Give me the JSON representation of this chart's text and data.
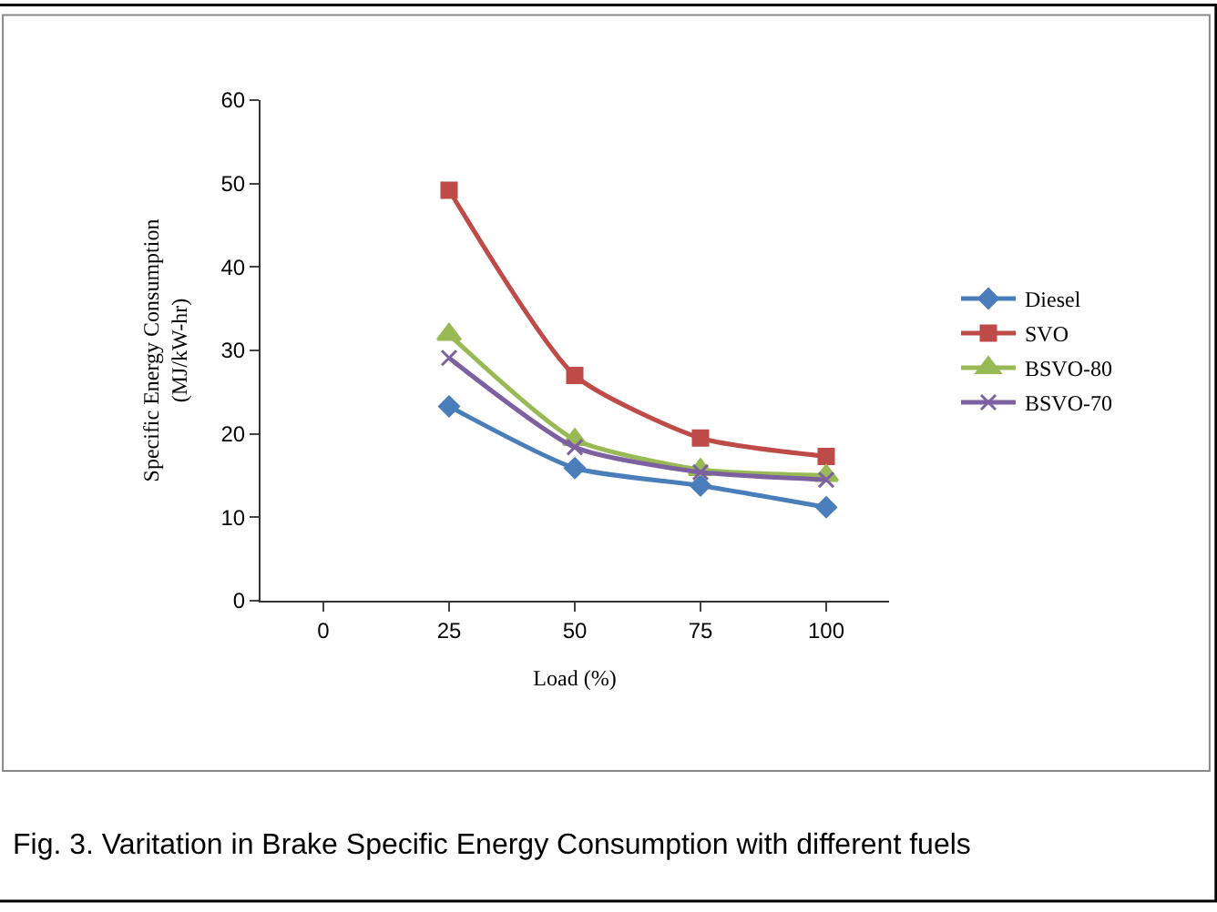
{
  "chart_data": {
    "type": "line",
    "xlabel": "Load (%)",
    "ylabel": "Specific Energy Consumption\n(MJ/kW-hr)",
    "categories": [
      "0",
      "25",
      "50",
      "75",
      "100"
    ],
    "series": [
      {
        "name": "Diesel",
        "color": "#4a7ebb",
        "marker": "diamond",
        "values": [
          null,
          23.3,
          15.9,
          13.8,
          11.2
        ]
      },
      {
        "name": "SVO",
        "color": "#be4b48",
        "marker": "square",
        "values": [
          null,
          49.2,
          27.0,
          19.5,
          17.3
        ]
      },
      {
        "name": "BSVO-80",
        "color": "#98b954",
        "marker": "triangle",
        "values": [
          null,
          31.9,
          19.3,
          15.7,
          15.0
        ]
      },
      {
        "name": "BSVO-70",
        "color": "#7d60a0",
        "marker": "cross",
        "values": [
          null,
          29.1,
          18.4,
          15.4,
          14.5
        ]
      }
    ],
    "ylim": [
      0,
      60
    ],
    "yticks": [
      0,
      10,
      20,
      30,
      40,
      50,
      60
    ],
    "legend": "right",
    "annotations": [
      "Fig. 3. Varitation in Brake Specific Energy Consumption with different fuels"
    ]
  }
}
